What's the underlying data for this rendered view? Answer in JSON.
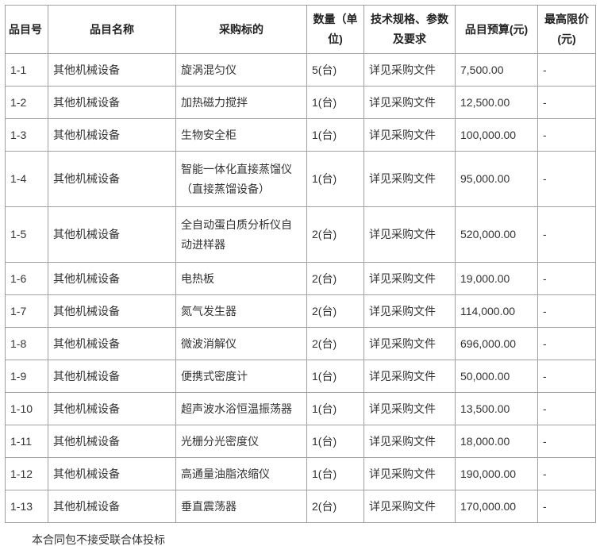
{
  "table": {
    "headers": [
      "品目号",
      "品目名称",
      "采购标的",
      "数量（单位)",
      "技术规格、参数及要求",
      "品目预算(元)",
      "最高限价(元)"
    ],
    "rows": [
      [
        "1-1",
        "其他机械设备",
        "旋涡混匀仪",
        "5(台)",
        "详见采购文件",
        "7,500.00",
        "-"
      ],
      [
        "1-2",
        "其他机械设备",
        "加热磁力搅拌",
        "1(台)",
        "详见采购文件",
        "12,500.00",
        "-"
      ],
      [
        "1-3",
        "其他机械设备",
        "生物安全柜",
        "1(台)",
        "详见采购文件",
        "100,000.00",
        "-"
      ],
      [
        "1-4",
        "其他机械设备",
        "智能一体化直接蒸馏仪（直接蒸馏设备）",
        "1(台)",
        "详见采购文件",
        "95,000.00",
        "-"
      ],
      [
        "1-5",
        "其他机械设备",
        "全自动蛋白质分析仪自动进样器",
        "2(台)",
        "详见采购文件",
        "520,000.00",
        "-"
      ],
      [
        "1-6",
        "其他机械设备",
        "电热板",
        "2(台)",
        "详见采购文件",
        "19,000.00",
        "-"
      ],
      [
        "1-7",
        "其他机械设备",
        "氮气发生器",
        "2(台)",
        "详见采购文件",
        "114,000.00",
        "-"
      ],
      [
        "1-8",
        "其他机械设备",
        "微波消解仪",
        "2(台)",
        "详见采购文件",
        "696,000.00",
        "-"
      ],
      [
        "1-9",
        "其他机械设备",
        "便携式密度计",
        "1(台)",
        "详见采购文件",
        "50,000.00",
        "-"
      ],
      [
        "1-10",
        "其他机械设备",
        "超声波水浴恒温振荡器",
        "1(台)",
        "详见采购文件",
        "13,500.00",
        "-"
      ],
      [
        "1-11",
        "其他机械设备",
        "光栅分光密度仪",
        "1(台)",
        "详见采购文件",
        "18,000.00",
        "-"
      ],
      [
        "1-12",
        "其他机械设备",
        "高通量油脂浓缩仪",
        "1(台)",
        "详见采购文件",
        "190,000.00",
        "-"
      ],
      [
        "1-13",
        "其他机械设备",
        "垂直震荡器",
        "2(台)",
        "详见采购文件",
        "170,000.00",
        "-"
      ]
    ]
  },
  "note": "本合同包不接受联合体投标"
}
